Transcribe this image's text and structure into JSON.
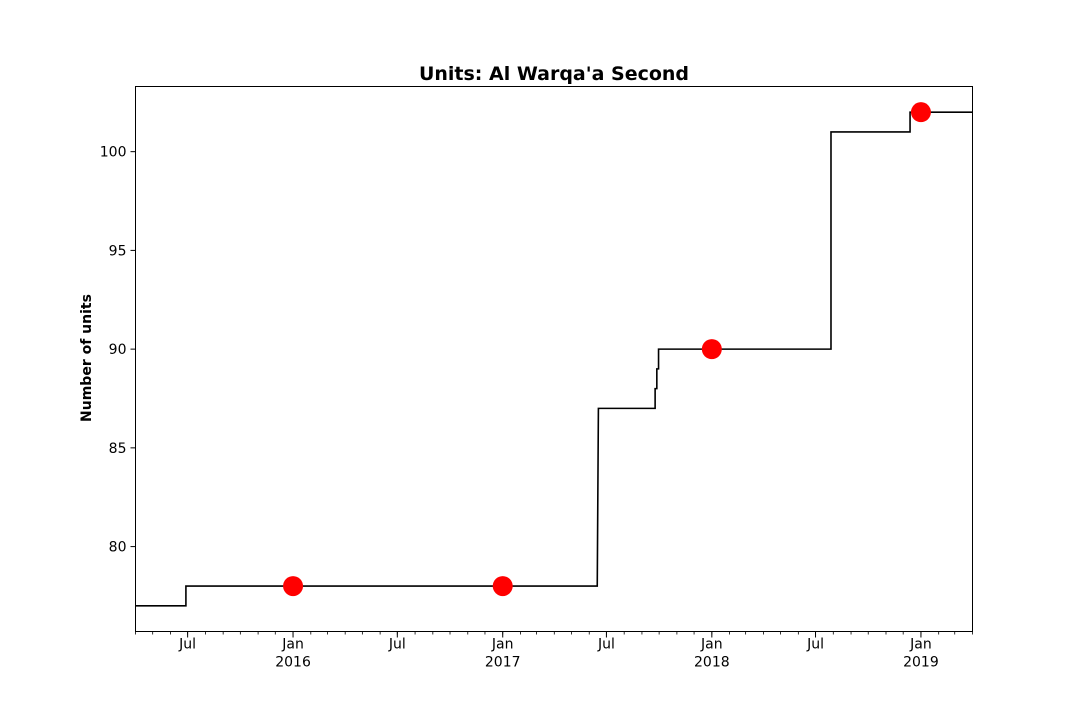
{
  "chart_data": {
    "type": "line",
    "title": "Units: Al Warqa'a Second",
    "xlabel": "",
    "ylabel": "Number of units",
    "xlim": [
      "2015-04-01",
      "2019-04-01"
    ],
    "ylim": [
      75.7,
      103.3
    ],
    "grid": false,
    "legend": "none",
    "y_ticks": [
      80,
      85,
      90,
      95,
      100
    ],
    "x_ticks": [
      {
        "date": "2015-07-01",
        "label": "Jul",
        "year": ""
      },
      {
        "date": "2016-01-01",
        "label": "Jan",
        "year": "2016"
      },
      {
        "date": "2016-07-01",
        "label": "Jul",
        "year": ""
      },
      {
        "date": "2017-01-01",
        "label": "Jan",
        "year": "2017"
      },
      {
        "date": "2017-07-01",
        "label": "Jul",
        "year": ""
      },
      {
        "date": "2018-01-01",
        "label": "Jan",
        "year": "2018"
      },
      {
        "date": "2018-07-01",
        "label": "Jul",
        "year": ""
      },
      {
        "date": "2019-01-01",
        "label": "Jan",
        "year": "2019"
      }
    ],
    "series": [
      {
        "kind": "step",
        "color": "#000000",
        "points": [
          {
            "x": "2015-04-01",
            "y": 77
          },
          {
            "x": "2015-06-28",
            "y": 77
          },
          {
            "x": "2015-06-28",
            "y": 78
          },
          {
            "x": "2017-06-15",
            "y": 78
          },
          {
            "x": "2017-06-17",
            "y": 87
          },
          {
            "x": "2017-09-24",
            "y": 87
          },
          {
            "x": "2017-09-24",
            "y": 88
          },
          {
            "x": "2017-09-27",
            "y": 88
          },
          {
            "x": "2017-09-27",
            "y": 89
          },
          {
            "x": "2017-09-30",
            "y": 89
          },
          {
            "x": "2017-09-30",
            "y": 90
          },
          {
            "x": "2018-07-28",
            "y": 90
          },
          {
            "x": "2018-07-28",
            "y": 101
          },
          {
            "x": "2018-12-13",
            "y": 101
          },
          {
            "x": "2018-12-13",
            "y": 102
          },
          {
            "x": "2019-04-01",
            "y": 102
          }
        ]
      },
      {
        "kind": "markers",
        "color": "#ff0000",
        "points": [
          {
            "x": "2016-01-01",
            "y": 78
          },
          {
            "x": "2017-01-01",
            "y": 78
          },
          {
            "x": "2018-01-01",
            "y": 90
          },
          {
            "x": "2019-01-01",
            "y": 102
          }
        ]
      }
    ]
  }
}
